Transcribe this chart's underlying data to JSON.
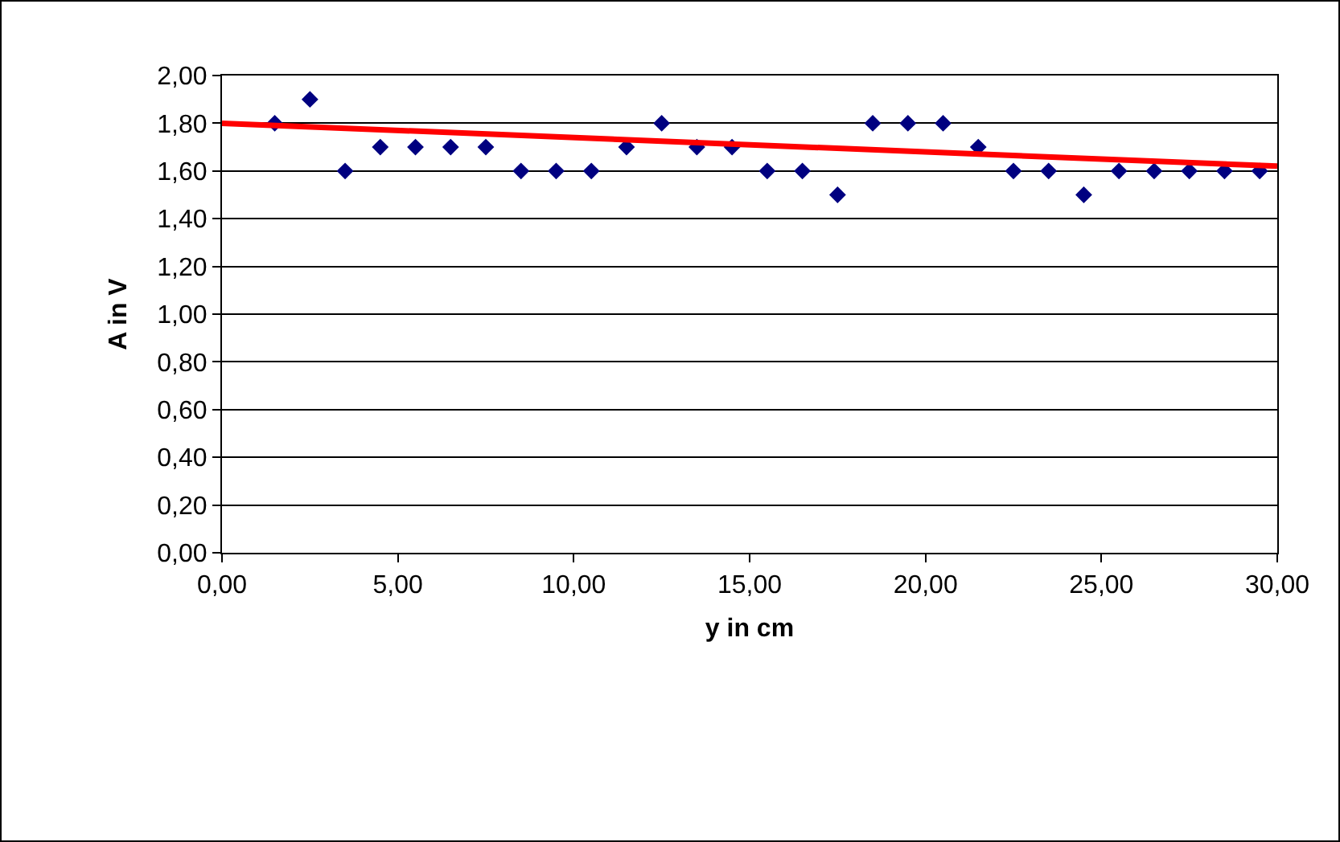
{
  "chart_data": {
    "type": "scatter",
    "xlabel": "y in cm",
    "ylabel": "A in V",
    "xlim": [
      0,
      30
    ],
    "ylim": [
      0,
      2
    ],
    "xticks": [
      {
        "value": 0,
        "label": "0,00"
      },
      {
        "value": 5,
        "label": "5,00"
      },
      {
        "value": 10,
        "label": "10,00"
      },
      {
        "value": 15,
        "label": "15,00"
      },
      {
        "value": 20,
        "label": "20,00"
      },
      {
        "value": 25,
        "label": "25,00"
      },
      {
        "value": 30,
        "label": "30,00"
      }
    ],
    "yticks": [
      {
        "value": 0,
        "label": "0,00"
      },
      {
        "value": 0.2,
        "label": "0,20"
      },
      {
        "value": 0.4,
        "label": "0,40"
      },
      {
        "value": 0.6,
        "label": "0,60"
      },
      {
        "value": 0.8,
        "label": "0,80"
      },
      {
        "value": 1,
        "label": "1,00"
      },
      {
        "value": 1.2,
        "label": "1,20"
      },
      {
        "value": 1.4,
        "label": "1,40"
      },
      {
        "value": 1.6,
        "label": "1,60"
      },
      {
        "value": 1.8,
        "label": "1,80"
      },
      {
        "value": 2,
        "label": "2,00"
      }
    ],
    "grid": "y",
    "series": [
      {
        "marker": "diamond",
        "color": "#000080",
        "x": [
          1.5,
          2.5,
          3.5,
          4.5,
          5.5,
          6.5,
          7.5,
          8.5,
          9.5,
          10.5,
          11.5,
          12.5,
          13.5,
          14.5,
          15.5,
          16.5,
          17.5,
          18.5,
          19.5,
          20.5,
          21.5,
          22.5,
          23.5,
          24.5,
          25.5,
          26.5,
          27.5,
          28.5,
          29.5
        ],
        "values": [
          1.8,
          1.9,
          1.6,
          1.7,
          1.7,
          1.7,
          1.7,
          1.6,
          1.6,
          1.6,
          1.7,
          1.8,
          1.7,
          1.7,
          1.6,
          1.6,
          1.5,
          1.8,
          1.8,
          1.8,
          1.7,
          1.6,
          1.6,
          1.5,
          1.6,
          1.6,
          1.6,
          1.6,
          1.6
        ]
      },
      {
        "type": "line",
        "marker": "none",
        "line_style": "solid",
        "color": "#ff0000",
        "x": [
          0,
          30
        ],
        "values": [
          1.8,
          1.62
        ]
      }
    ]
  }
}
